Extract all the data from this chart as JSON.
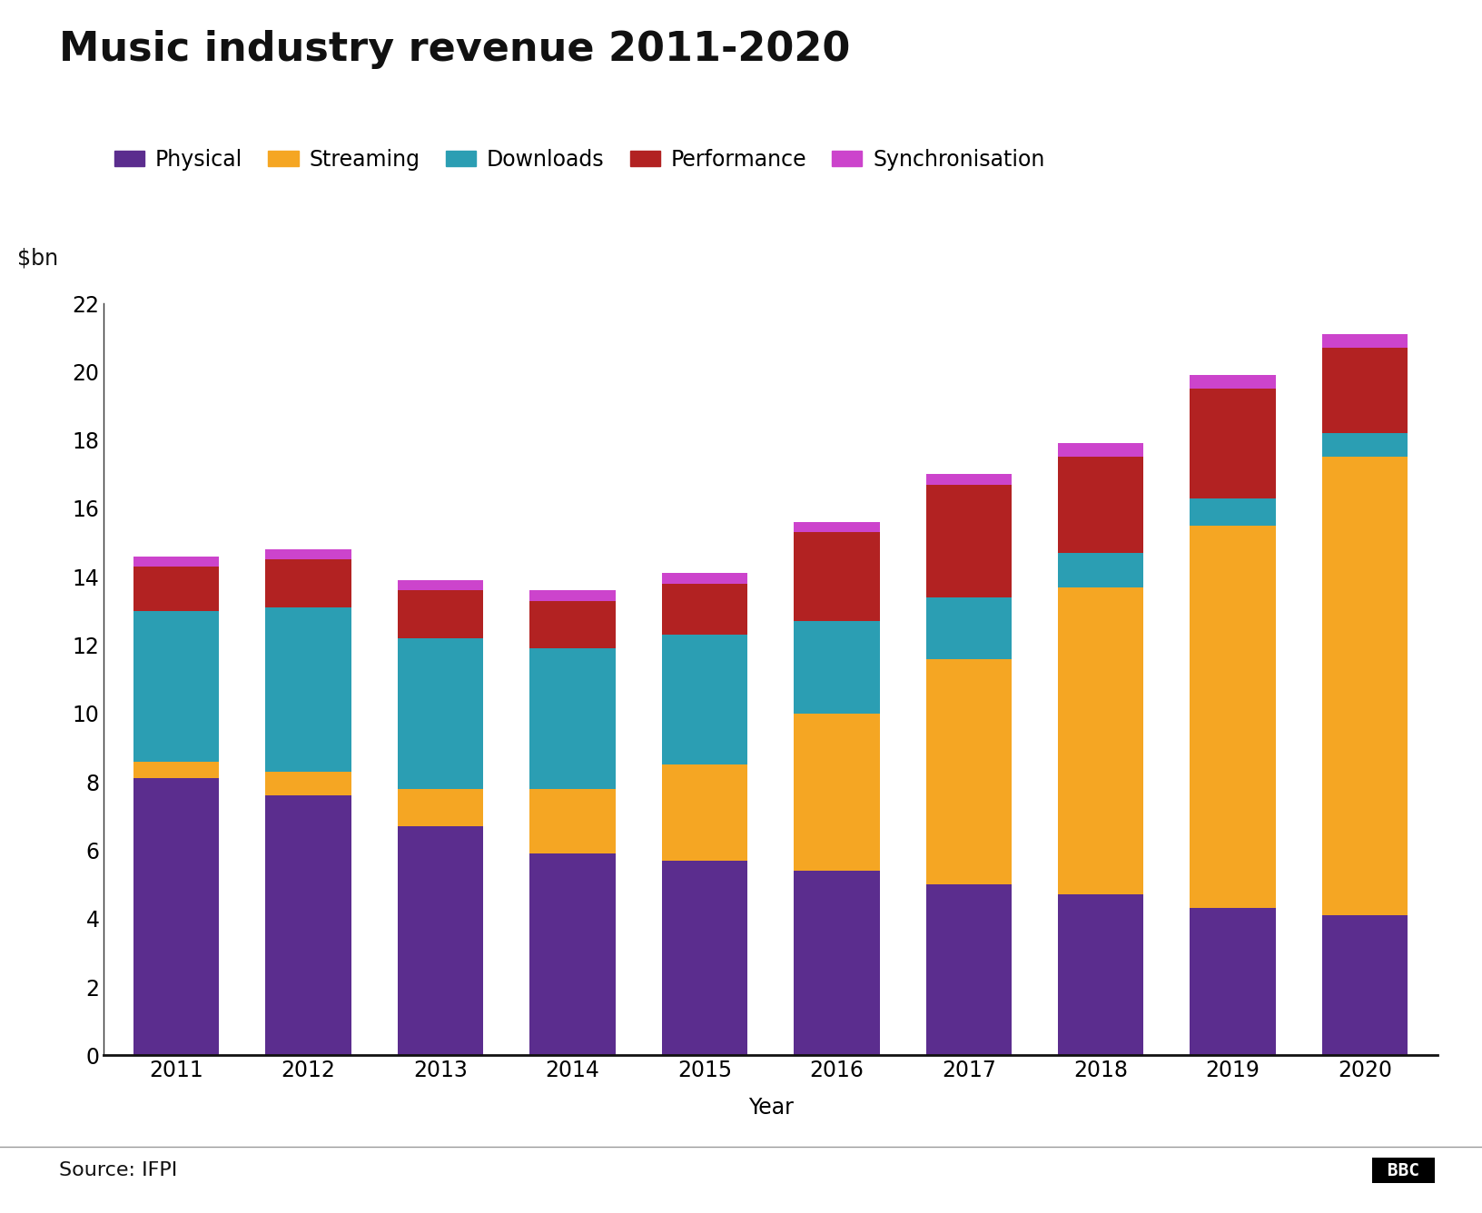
{
  "title": "Music industry revenue 2011-2020",
  "ylabel": "$bn",
  "xlabel": "Year",
  "years": [
    2011,
    2012,
    2013,
    2014,
    2015,
    2016,
    2017,
    2018,
    2019,
    2020
  ],
  "categories": [
    "Physical",
    "Streaming",
    "Downloads",
    "Performance",
    "Synchronisation"
  ],
  "colors": [
    "#5b2d8e",
    "#f5a623",
    "#2b9eb3",
    "#b22222",
    "#cc44cc"
  ],
  "data": {
    "Physical": [
      8.1,
      7.6,
      6.7,
      5.9,
      5.7,
      5.4,
      5.0,
      4.7,
      4.3,
      4.1
    ],
    "Streaming": [
      0.5,
      0.7,
      1.1,
      1.9,
      2.8,
      4.6,
      6.6,
      9.0,
      11.2,
      13.4
    ],
    "Downloads": [
      4.4,
      4.8,
      4.4,
      4.1,
      3.8,
      2.7,
      1.8,
      1.0,
      0.8,
      0.7
    ],
    "Performance": [
      1.3,
      1.4,
      1.4,
      1.4,
      1.5,
      2.6,
      3.3,
      2.8,
      3.2,
      2.5
    ],
    "Synchronisation": [
      0.3,
      0.3,
      0.3,
      0.3,
      0.3,
      0.3,
      0.3,
      0.4,
      0.4,
      0.4
    ]
  },
  "ylim": [
    0,
    22
  ],
  "yticks": [
    0,
    2,
    4,
    6,
    8,
    10,
    12,
    14,
    16,
    18,
    20,
    22
  ],
  "source_text": "Source: IFPI",
  "background_color": "#ffffff",
  "bar_width": 0.65,
  "title_fontsize": 32,
  "tick_fontsize": 17,
  "label_fontsize": 17,
  "legend_fontsize": 17
}
